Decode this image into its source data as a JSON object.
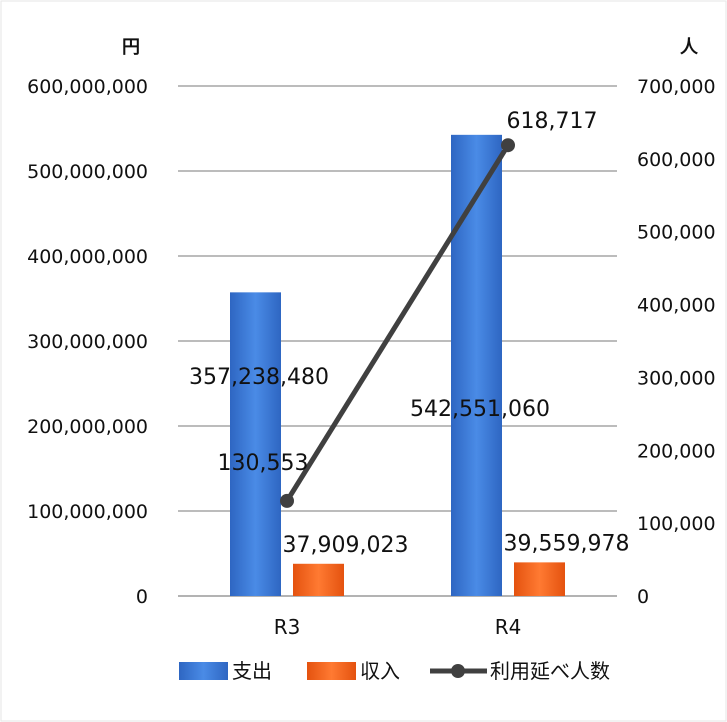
{
  "chart_data": {
    "type": "bar",
    "categories": [
      "R3",
      "R4"
    ],
    "series": [
      {
        "name": "支出",
        "values": [
          357238480,
          542551060
        ],
        "color": "#3a78d4",
        "axis": "left",
        "kind": "bar",
        "labels": [
          "357,238,480",
          "542,551,060"
        ]
      },
      {
        "name": "収入",
        "values": [
          37909023,
          39559978
        ],
        "color": "#f0641e",
        "axis": "left",
        "kind": "bar",
        "labels": [
          "37,909,023",
          "39,559,978"
        ]
      },
      {
        "name": "利用延べ人数",
        "values": [
          130553,
          618717
        ],
        "color": "#404040",
        "axis": "right",
        "kind": "line",
        "labels": [
          "130,553",
          "618,717"
        ]
      }
    ],
    "left_axis": {
      "unit": "円",
      "ylim": [
        0,
        600000000
      ],
      "ticks": [
        0,
        100000000,
        200000000,
        300000000,
        400000000,
        500000000,
        600000000
      ],
      "tick_labels": [
        "0",
        "100,000,000",
        "200,000,000",
        "300,000,000",
        "400,000,000",
        "500,000,000",
        "600,000,000"
      ]
    },
    "right_axis": {
      "unit": "人",
      "ylim": [
        0,
        700000
      ],
      "ticks": [
        0,
        100000,
        200000,
        300000,
        400000,
        500000,
        600000,
        700000
      ],
      "tick_labels": [
        "0",
        "100,000",
        "200,000",
        "300,000",
        "400,000",
        "500,000",
        "600,000",
        "700,000"
      ]
    },
    "grid": true,
    "legend": "bottom"
  }
}
